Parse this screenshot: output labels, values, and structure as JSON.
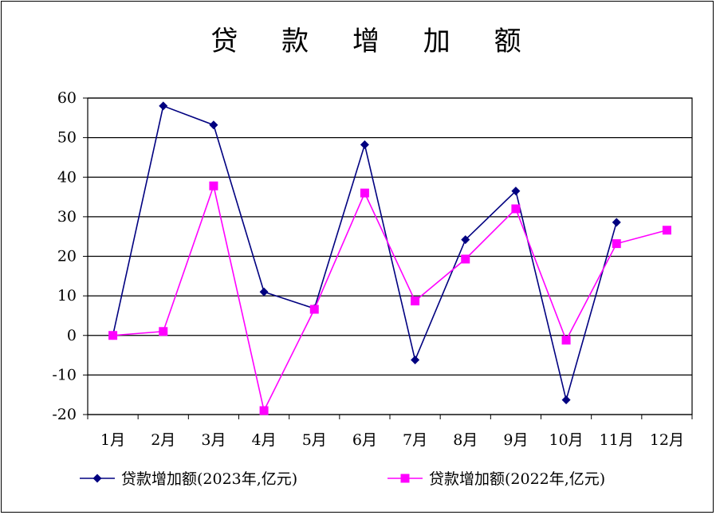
{
  "chart_data": {
    "type": "line",
    "title": "贷 款 增 加 额",
    "xlabel": "",
    "ylabel": "",
    "categories": [
      "1月",
      "2月",
      "3月",
      "4月",
      "5月",
      "6月",
      "7月",
      "8月",
      "9月",
      "10月",
      "11月",
      "12月"
    ],
    "ylim": [
      -20,
      60
    ],
    "yticks": [
      -20,
      -10,
      0,
      10,
      20,
      30,
      40,
      50,
      60
    ],
    "grid": true,
    "legend_position": "bottom",
    "series": [
      {
        "name": "贷款增加额(2023年,亿元)",
        "color": "#000080",
        "marker": "diamond",
        "values": [
          0,
          58,
          53.2,
          11,
          6.8,
          48.2,
          -6.2,
          24.2,
          36.5,
          -16.3,
          28.6,
          null
        ]
      },
      {
        "name": "贷款增加额(2022年,亿元)",
        "color": "#FF00FF",
        "marker": "square",
        "values": [
          0,
          1,
          37.8,
          -19,
          6.6,
          36,
          8.7,
          19.3,
          32,
          -1.2,
          23.2,
          26.6
        ]
      }
    ]
  }
}
